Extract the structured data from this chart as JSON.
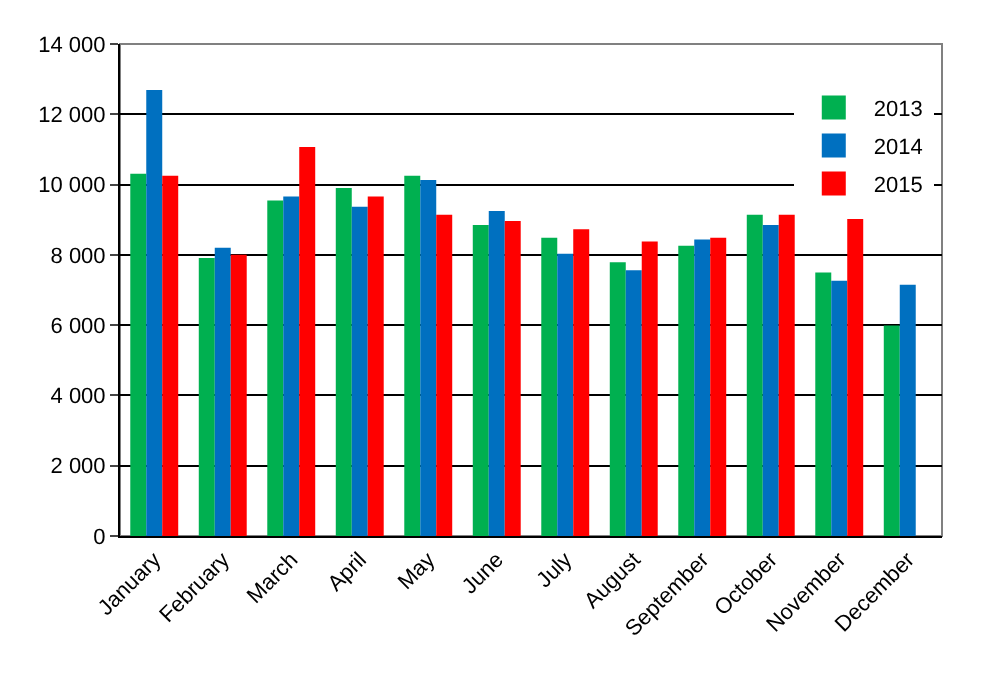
{
  "chart_data": {
    "type": "bar",
    "categories": [
      "January",
      "February",
      "March",
      "April",
      "May",
      "June",
      "July",
      "August",
      "September",
      "October",
      "November",
      "December"
    ],
    "series": [
      {
        "name": "2013",
        "color": "#00b050",
        "values": [
          10310,
          7910,
          9550,
          9900,
          10250,
          8850,
          8490,
          7790,
          8260,
          9140,
          7500,
          5990
        ]
      },
      {
        "name": "2014",
        "color": "#0070c0",
        "values": [
          12690,
          8200,
          9660,
          9370,
          10130,
          9250,
          8030,
          7560,
          8440,
          8850,
          7260,
          7150
        ]
      },
      {
        "name": "2015",
        "color": "#ff0000",
        "values": [
          10250,
          8000,
          11070,
          9660,
          9140,
          8960,
          8730,
          8380,
          8490,
          9140,
          9020,
          null
        ]
      }
    ],
    "ylim": [
      0,
      14000
    ],
    "yticks": [
      {
        "value": 0,
        "label": "0"
      },
      {
        "value": 2000,
        "label": "2 000"
      },
      {
        "value": 4000,
        "label": "4 000"
      },
      {
        "value": 6000,
        "label": "6 000"
      },
      {
        "value": 8000,
        "label": "8 000"
      },
      {
        "value": 10000,
        "label": "10 000"
      },
      {
        "value": 12000,
        "label": "12 000"
      },
      {
        "value": 14000,
        "label": "14 000"
      }
    ],
    "grid": "y",
    "legend": "top right"
  }
}
